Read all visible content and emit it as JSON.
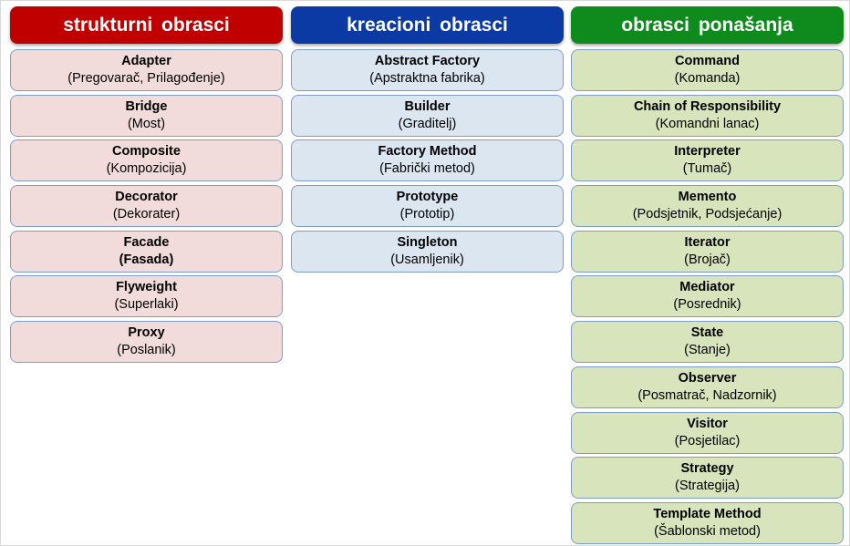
{
  "columns": [
    {
      "title": "strukturni obrasci",
      "accent": "#c00000",
      "card_color": "#f2dcdb",
      "items": [
        {
          "name": "Adapter",
          "translation": "(Pregovarač, Prilagođenje)"
        },
        {
          "name": "Bridge",
          "translation": "(Most)"
        },
        {
          "name": "Composite",
          "translation": "(Kompozicija)"
        },
        {
          "name": "Decorator",
          "translation": "(Dekorater)"
        },
        {
          "name": "Facade",
          "translation": "(Fasada)"
        },
        {
          "name": "Flyweight",
          "translation": "(Superlaki)"
        },
        {
          "name": "Proxy",
          "translation": "(Poslanik)"
        }
      ]
    },
    {
      "title": "kreacioni obrasci",
      "accent": "#0b3aa4",
      "card_color": "#dce6f1",
      "items": [
        {
          "name": "Abstract Factory",
          "translation": "(Apstraktna fabrika)"
        },
        {
          "name": "Builder",
          "translation": "(Graditelj)"
        },
        {
          "name": "Factory Method",
          "translation": "(Fabrički metod)"
        },
        {
          "name": "Prototype",
          "translation": "(Prototip)"
        },
        {
          "name": "Singleton",
          "translation": "(Usamljenik)"
        }
      ]
    },
    {
      "title": "obrasci ponašanja",
      "accent": "#0f8a1c",
      "card_color": "#d8e4bc",
      "items": [
        {
          "name": "Command",
          "translation": "(Komanda)"
        },
        {
          "name": "Chain of Responsibility",
          "translation": "(Komandni lanac)"
        },
        {
          "name": "Interpreter",
          "translation": "(Tumač)"
        },
        {
          "name": "Memento",
          "translation": "(Podsjetnik, Podsjećanje)"
        },
        {
          "name": "Iterator",
          "translation": "(Brojač)"
        },
        {
          "name": "Mediator",
          "translation": "(Posrednik)"
        },
        {
          "name": "State",
          "translation": "(Stanje)"
        },
        {
          "name": "Observer",
          "translation": "(Posmatrač, Nadzornik)"
        },
        {
          "name": "Visitor",
          "translation": "(Posjetilac)"
        },
        {
          "name": "Strategy",
          "translation": "(Strategija)"
        },
        {
          "name": "Template Method",
          "translation": "(Šablonski metod)"
        }
      ]
    }
  ]
}
